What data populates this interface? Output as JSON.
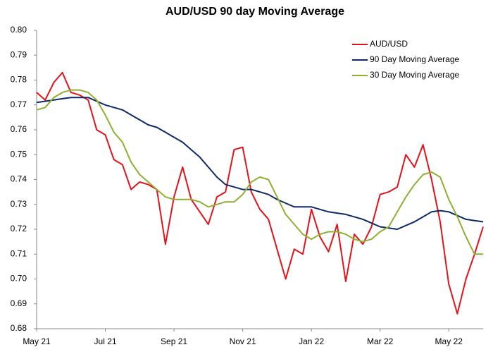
{
  "chart_data": {
    "type": "line",
    "title": "AUD/USD 90 day Moving Average",
    "categories": [
      "May 21",
      null,
      null,
      null,
      null,
      null,
      null,
      null,
      "Jul 21",
      null,
      null,
      null,
      null,
      null,
      null,
      null,
      "Sep 21",
      null,
      null,
      null,
      null,
      null,
      null,
      null,
      "Nov 21",
      null,
      null,
      null,
      null,
      null,
      null,
      null,
      "Jan 22",
      null,
      null,
      null,
      null,
      null,
      null,
      null,
      "Mar 22",
      null,
      null,
      null,
      null,
      null,
      null,
      null,
      "May 22",
      null,
      null,
      null,
      null
    ],
    "series": [
      {
        "name": "AUD/USD",
        "color": "#e3121b",
        "values": [
          0.775,
          0.772,
          0.779,
          0.783,
          0.775,
          0.774,
          0.772,
          0.76,
          0.758,
          0.748,
          0.746,
          0.736,
          0.739,
          0.738,
          0.736,
          0.714,
          0.733,
          0.745,
          0.732,
          0.727,
          0.722,
          0.733,
          0.735,
          0.752,
          0.753,
          0.735,
          0.728,
          0.724,
          0.712,
          0.7,
          0.712,
          0.71,
          0.728,
          0.717,
          0.711,
          0.722,
          0.699,
          0.718,
          0.714,
          0.721,
          0.734,
          0.735,
          0.737,
          0.75,
          0.745,
          0.754,
          0.74,
          0.723,
          0.698,
          0.686,
          0.7,
          0.71,
          0.721
        ]
      },
      {
        "name": "90 Day Moving Average",
        "color": "#0d2a66",
        "values": [
          0.771,
          0.7715,
          0.772,
          0.7725,
          0.773,
          0.773,
          0.773,
          0.7715,
          0.77,
          0.769,
          0.768,
          0.766,
          0.764,
          0.762,
          0.761,
          0.759,
          0.757,
          0.755,
          0.752,
          0.749,
          0.745,
          0.741,
          0.738,
          0.737,
          0.736,
          0.736,
          0.735,
          0.734,
          0.732,
          0.7305,
          0.729,
          0.729,
          0.729,
          0.728,
          0.727,
          0.7265,
          0.726,
          0.725,
          0.724,
          0.7225,
          0.721,
          0.7205,
          0.72,
          0.7215,
          0.723,
          0.725,
          0.727,
          0.7275,
          0.727,
          0.7255,
          0.724,
          0.7235,
          0.723
        ]
      },
      {
        "name": "30 Day Moving Average",
        "color": "#8db030",
        "values": [
          0.768,
          0.769,
          0.773,
          0.775,
          0.776,
          0.776,
          0.775,
          0.772,
          0.766,
          0.759,
          0.755,
          0.747,
          0.742,
          0.739,
          0.736,
          0.733,
          0.732,
          0.732,
          0.732,
          0.731,
          0.729,
          0.73,
          0.731,
          0.731,
          0.734,
          0.739,
          0.741,
          0.74,
          0.733,
          0.726,
          0.722,
          0.718,
          0.716,
          0.718,
          0.719,
          0.719,
          0.718,
          0.716,
          0.715,
          0.716,
          0.719,
          0.721,
          0.727,
          0.733,
          0.738,
          0.742,
          0.743,
          0.741,
          0.732,
          0.725,
          0.717,
          0.71,
          0.71
        ]
      }
    ],
    "ylim": [
      0.68,
      0.8
    ],
    "yticks": [
      0.68,
      0.69,
      {
        "value": 0.7,
        "label": "0.70"
      },
      0.71,
      0.72,
      0.73,
      0.74,
      0.75,
      0.76,
      0.77,
      0.78,
      0.79,
      {
        "value": 0.8,
        "label": "0.80"
      }
    ],
    "legend": "upper right",
    "grid": false
  }
}
